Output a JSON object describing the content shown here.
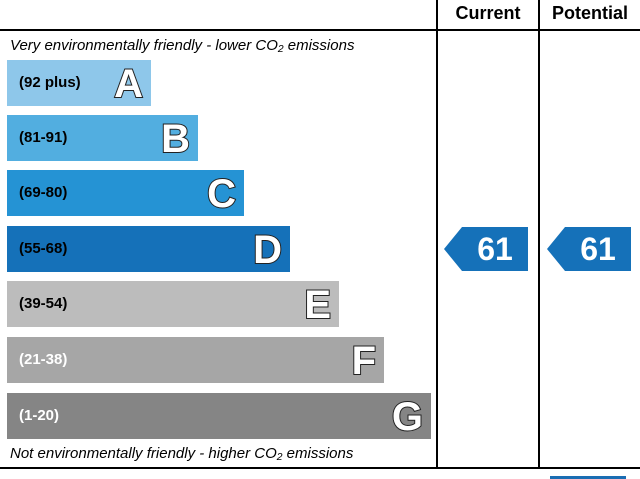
{
  "columns": {
    "current": "Current",
    "potential": "Potential"
  },
  "captions": {
    "top": "Very environmentally friendly - lower CO₂ emissions",
    "bottom": "Not environmentally friendly - higher CO₂ emissions"
  },
  "chart_data": {
    "type": "bar",
    "categories": [
      "A",
      "B",
      "C",
      "D",
      "E",
      "F",
      "G"
    ],
    "ranges": [
      "(92 plus)",
      "(81-91)",
      "(69-80)",
      "(55-68)",
      "(39-54)",
      "(21-38)",
      "(1-20)"
    ],
    "colors": [
      "#8ec7ea",
      "#52aee0",
      "#2593d4",
      "#1571b9",
      "#bcbcbc",
      "#a6a6a6",
      "#858585"
    ],
    "range_text_colors": [
      "#000000",
      "#000000",
      "#000000",
      "#000000",
      "#000000",
      "#ffffff",
      "#ffffff"
    ],
    "current": {
      "value": 61,
      "band": "D"
    },
    "potential": {
      "value": 61,
      "band": "D"
    },
    "arrow_color": "#1571b9"
  }
}
